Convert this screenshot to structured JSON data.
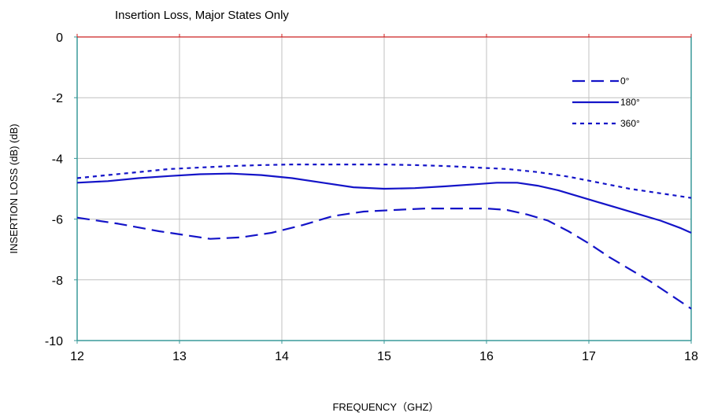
{
  "chart_data": {
    "type": "line",
    "title": "Insertion Loss, Major States Only",
    "xlabel": "FREQUENCY（GHZ）",
    "ylabel": "INSERTION LOSS (dB)  (dB)",
    "xlim": [
      12,
      18
    ],
    "ylim": [
      -10,
      0
    ],
    "xticks": [
      "12",
      "13",
      "14",
      "15",
      "16",
      "17",
      "18"
    ],
    "yticks": [
      "0",
      "-2",
      "-4",
      "-6",
      "-8",
      "-10"
    ],
    "grid": true,
    "legend_position": "top-right",
    "series": [
      {
        "name": "0°",
        "dash": "dashed",
        "x": [
          12.0,
          12.4,
          12.8,
          13.1,
          13.3,
          13.6,
          13.9,
          14.2,
          14.5,
          14.8,
          15.1,
          15.4,
          15.7,
          16.0,
          16.2,
          16.4,
          16.6,
          16.8,
          17.0,
          17.2,
          17.4,
          17.6,
          17.8,
          18.0
        ],
        "y": [
          -5.95,
          -6.15,
          -6.4,
          -6.55,
          -6.65,
          -6.6,
          -6.45,
          -6.2,
          -5.9,
          -5.75,
          -5.7,
          -5.65,
          -5.65,
          -5.65,
          -5.7,
          -5.85,
          -6.05,
          -6.4,
          -6.8,
          -7.25,
          -7.65,
          -8.05,
          -8.5,
          -8.95
        ]
      },
      {
        "name": "180°",
        "dash": "solid",
        "x": [
          12.0,
          12.3,
          12.6,
          12.9,
          13.2,
          13.5,
          13.8,
          14.1,
          14.4,
          14.7,
          15.0,
          15.3,
          15.6,
          15.9,
          16.1,
          16.3,
          16.5,
          16.7,
          16.9,
          17.1,
          17.3,
          17.5,
          17.7,
          17.9,
          18.0
        ],
        "y": [
          -4.8,
          -4.75,
          -4.65,
          -4.58,
          -4.52,
          -4.5,
          -4.55,
          -4.65,
          -4.8,
          -4.95,
          -5.0,
          -4.98,
          -4.92,
          -4.85,
          -4.8,
          -4.8,
          -4.9,
          -5.05,
          -5.25,
          -5.45,
          -5.65,
          -5.85,
          -6.05,
          -6.3,
          -6.45
        ]
      },
      {
        "name": "360°",
        "dash": "dotted",
        "x": [
          12.0,
          12.3,
          12.6,
          12.9,
          13.2,
          13.5,
          13.8,
          14.1,
          14.4,
          14.7,
          15.0,
          15.3,
          15.6,
          15.9,
          16.2,
          16.5,
          16.8,
          17.1,
          17.4,
          17.7,
          18.0
        ],
        "y": [
          -4.65,
          -4.55,
          -4.45,
          -4.35,
          -4.3,
          -4.25,
          -4.22,
          -4.2,
          -4.2,
          -4.2,
          -4.2,
          -4.22,
          -4.25,
          -4.3,
          -4.35,
          -4.45,
          -4.6,
          -4.8,
          -5.0,
          -5.15,
          -5.3
        ]
      }
    ]
  },
  "colors": {
    "series": "#1414c8",
    "grid": "#c0c0c0",
    "frame": "#3a9a9a",
    "top_line": "#cc2020"
  }
}
